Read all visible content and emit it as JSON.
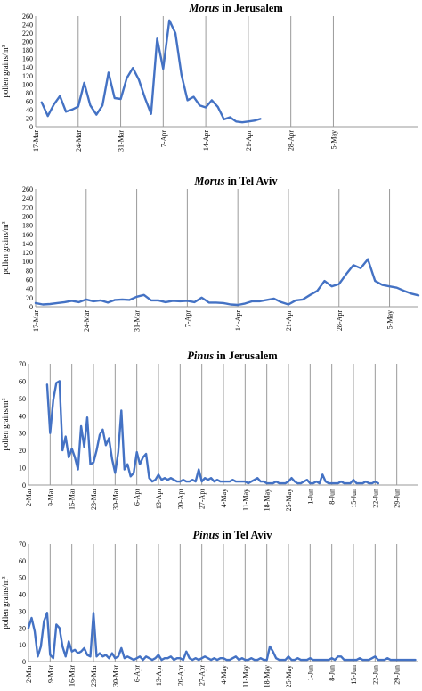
{
  "chart_data": [
    {
      "type": "line",
      "title_taxon": "Morus",
      "title_rest": " in Jerusalem",
      "ylabel": "pollen grains/m",
      "ylabel_sup": "3",
      "ylim": [
        0,
        260
      ],
      "yticks": [
        0,
        20,
        40,
        60,
        80,
        100,
        120,
        140,
        160,
        180,
        200,
        220,
        240,
        260
      ],
      "x_days": 63,
      "xticks": [
        {
          "day": 0,
          "label": "17-Mar"
        },
        {
          "day": 7,
          "label": "24-Mar"
        },
        {
          "day": 14,
          "label": "31-Mar"
        },
        {
          "day": 21,
          "label": "7-Apr"
        },
        {
          "day": 28,
          "label": "14-Apr"
        },
        {
          "day": 35,
          "label": "21-Apr"
        },
        {
          "day": 42,
          "label": "28-Apr"
        },
        {
          "day": 49,
          "label": "5-May"
        }
      ],
      "grid": "vertical",
      "series": [
        {
          "color": "#4472c4",
          "x": [
            1,
            2,
            3,
            4,
            5,
            6,
            7,
            8,
            9,
            10,
            11,
            12,
            13,
            14,
            15,
            16,
            17,
            18,
            19,
            20,
            21,
            22,
            23,
            24,
            25,
            26,
            27,
            28,
            29,
            30,
            31,
            32,
            33,
            34,
            35,
            36,
            37
          ],
          "y": [
            57,
            25,
            52,
            72,
            35,
            40,
            47,
            103,
            50,
            28,
            50,
            127,
            67,
            65,
            114,
            138,
            110,
            67,
            30,
            207,
            136,
            250,
            220,
            122,
            62,
            70,
            50,
            45,
            62,
            46,
            17,
            22,
            12,
            10,
            12,
            14,
            18
          ]
        }
      ]
    },
    {
      "type": "line",
      "title_taxon": "Morus",
      "title_rest": " in Tel Aviv",
      "ylabel": "pollen grains/m",
      "ylabel_sup": "3",
      "ylim": [
        0,
        260
      ],
      "yticks": [
        0,
        20,
        40,
        60,
        80,
        100,
        120,
        140,
        160,
        180,
        200,
        220,
        240,
        260
      ],
      "x_days": 53,
      "xticks": [
        {
          "day": 0,
          "label": "17-Mar"
        },
        {
          "day": 7,
          "label": "24-Mar"
        },
        {
          "day": 14,
          "label": "31-Mar"
        },
        {
          "day": 21,
          "label": "7-Apr"
        },
        {
          "day": 28,
          "label": "14-Apr"
        },
        {
          "day": 35,
          "label": "21-Apr"
        },
        {
          "day": 42,
          "label": "28-Apr"
        },
        {
          "day": 49,
          "label": "5-May"
        }
      ],
      "grid": "vertical",
      "series": [
        {
          "color": "#4472c4",
          "x": [
            0,
            1,
            2,
            3,
            4,
            5,
            6,
            7,
            8,
            9,
            10,
            11,
            12,
            13,
            14,
            15,
            16,
            17,
            18,
            19,
            20,
            21,
            22,
            23,
            24,
            25,
            26,
            27,
            28,
            29,
            30,
            31,
            32,
            33,
            34,
            35,
            36,
            37,
            38,
            39,
            40,
            41,
            42,
            43,
            44,
            45,
            46,
            47,
            48,
            49,
            50,
            51,
            52,
            53
          ],
          "y": [
            8,
            5,
            6,
            8,
            10,
            13,
            10,
            16,
            12,
            14,
            9,
            15,
            16,
            15,
            22,
            26,
            14,
            14,
            10,
            13,
            12,
            13,
            10,
            20,
            9,
            9,
            8,
            5,
            4,
            7,
            12,
            12,
            15,
            18,
            10,
            5,
            14,
            16,
            26,
            35,
            57,
            45,
            50,
            72,
            92,
            85,
            105,
            57,
            48,
            45,
            42,
            35,
            29,
            25
          ]
        }
      ]
    },
    {
      "type": "line",
      "title_taxon": "Pinus",
      "title_rest": " in Jerusalem",
      "ylabel": "pollen grains/m",
      "ylabel_sup": "3",
      "ylim": [
        0,
        70
      ],
      "yticks": [
        0,
        10,
        20,
        30,
        40,
        50,
        60,
        70
      ],
      "x_days": 126,
      "xticks": [
        {
          "day": 0,
          "label": "2-Mar"
        },
        {
          "day": 7,
          "label": "9-Mar"
        },
        {
          "day": 14,
          "label": "16-Mar"
        },
        {
          "day": 21,
          "label": "23-Mar"
        },
        {
          "day": 28,
          "label": "30-Mar"
        },
        {
          "day": 35,
          "label": "6-Apr"
        },
        {
          "day": 42,
          "label": "13-Apr"
        },
        {
          "day": 49,
          "label": "20-Apr"
        },
        {
          "day": 56,
          "label": "27-Apr"
        },
        {
          "day": 63,
          "label": "4-May"
        },
        {
          "day": 70,
          "label": "11-May"
        },
        {
          "day": 77,
          "label": "18-May"
        },
        {
          "day": 84,
          "label": "25-May"
        },
        {
          "day": 91,
          "label": "1-Jun"
        },
        {
          "day": 98,
          "label": "8-Jun"
        },
        {
          "day": 105,
          "label": "15-Jun"
        },
        {
          "day": 112,
          "label": "22-Jun"
        },
        {
          "day": 119,
          "label": "29-Jun"
        }
      ],
      "grid": "vertical",
      "series": [
        {
          "color": "#4472c4",
          "x": [
            6,
            7,
            8,
            9,
            10,
            11,
            12,
            13,
            14,
            15,
            16,
            17,
            18,
            19,
            20,
            21,
            22,
            23,
            24,
            25,
            26,
            27,
            28,
            29,
            30,
            31,
            32,
            33,
            34,
            35,
            36,
            37,
            38,
            39,
            40,
            41,
            42,
            43,
            44,
            45,
            46,
            47,
            48,
            49,
            50,
            51,
            52,
            53,
            54,
            55,
            56,
            57,
            58,
            59,
            60,
            61,
            62,
            63,
            64,
            65,
            66,
            67,
            68,
            69,
            70,
            71,
            72,
            73,
            74,
            75,
            76,
            77,
            78,
            79,
            80,
            81,
            82,
            83,
            84,
            85,
            86,
            87,
            88,
            89,
            90,
            91,
            92,
            93,
            94,
            95,
            96,
            97,
            98,
            99,
            100,
            101,
            102,
            103,
            104,
            105,
            106,
            107,
            108,
            109,
            110,
            111,
            112,
            113
          ],
          "y": [
            58,
            30,
            49,
            59,
            60,
            20,
            28,
            16,
            21,
            16,
            9,
            34,
            22,
            39,
            12,
            13,
            20,
            29,
            32,
            23,
            27,
            15,
            7,
            19,
            43,
            9,
            12,
            5,
            7,
            19,
            12,
            16,
            18,
            4,
            2,
            3,
            6,
            3,
            4,
            3,
            4,
            3,
            2,
            2,
            3,
            2,
            2,
            3,
            2,
            9,
            2,
            4,
            3,
            4,
            2,
            3,
            2,
            2,
            2,
            2,
            3,
            2,
            2,
            2,
            2,
            1,
            2,
            3,
            4,
            2,
            2,
            1,
            1,
            1,
            2,
            1,
            1,
            1,
            2,
            4,
            2,
            1,
            1,
            2,
            3,
            1,
            1,
            2,
            1,
            6,
            2,
            1,
            1,
            1,
            1,
            2,
            1,
            1,
            1,
            3,
            1,
            1,
            1,
            2,
            1,
            1,
            2,
            1
          ]
        }
      ]
    },
    {
      "type": "line",
      "title_taxon": "Pinus",
      "title_rest": " in Tel Aviv",
      "ylabel": "pollen grains/m",
      "ylabel_sup": "3",
      "ylim": [
        0,
        70
      ],
      "yticks": [
        0,
        10,
        20,
        30,
        40,
        50,
        60,
        70
      ],
      "x_days": 126,
      "xticks": [
        {
          "day": 0,
          "label": "2-Mar"
        },
        {
          "day": 7,
          "label": "9-Mar"
        },
        {
          "day": 14,
          "label": "16-Mar"
        },
        {
          "day": 21,
          "label": "23-Mar"
        },
        {
          "day": 28,
          "label": "30-Mar"
        },
        {
          "day": 35,
          "label": "6-Apr"
        },
        {
          "day": 42,
          "label": "13-Apr"
        },
        {
          "day": 49,
          "label": "20-Apr"
        },
        {
          "day": 56,
          "label": "27-Apr"
        },
        {
          "day": 63,
          "label": "4-May"
        },
        {
          "day": 70,
          "label": "11-May"
        },
        {
          "day": 77,
          "label": "18-May"
        },
        {
          "day": 84,
          "label": "25-May"
        },
        {
          "day": 91,
          "label": "1-Jun"
        },
        {
          "day": 98,
          "label": "8-Jun"
        },
        {
          "day": 105,
          "label": "15-Jun"
        },
        {
          "day": 112,
          "label": "22-Jun"
        },
        {
          "day": 119,
          "label": "29-Jun"
        }
      ],
      "grid": "vertical",
      "series": [
        {
          "color": "#4472c4",
          "x": [
            0,
            1,
            2,
            3,
            4,
            5,
            6,
            7,
            8,
            9,
            10,
            11,
            12,
            13,
            14,
            15,
            16,
            17,
            18,
            19,
            20,
            21,
            22,
            23,
            24,
            25,
            26,
            27,
            28,
            29,
            30,
            31,
            32,
            33,
            34,
            35,
            36,
            37,
            38,
            39,
            40,
            41,
            42,
            43,
            44,
            45,
            46,
            47,
            48,
            49,
            50,
            51,
            52,
            53,
            54,
            55,
            56,
            57,
            58,
            59,
            60,
            61,
            62,
            63,
            64,
            65,
            66,
            67,
            68,
            69,
            70,
            71,
            72,
            73,
            74,
            75,
            76,
            77,
            78,
            79,
            80,
            81,
            82,
            83,
            84,
            85,
            86,
            87,
            88,
            89,
            90,
            91,
            92,
            93,
            94,
            95,
            96,
            97,
            98,
            99,
            100,
            101,
            102,
            103,
            104,
            105,
            106,
            107,
            108,
            109,
            110,
            111,
            112,
            113,
            114,
            115,
            116,
            117,
            118,
            119,
            120,
            121,
            122,
            123,
            124,
            125
          ],
          "y": [
            20,
            26,
            18,
            3,
            9,
            24,
            29,
            4,
            2,
            22,
            20,
            9,
            3,
            12,
            6,
            7,
            5,
            6,
            8,
            4,
            3,
            29,
            3,
            5,
            3,
            4,
            2,
            5,
            2,
            3,
            8,
            2,
            3,
            2,
            1,
            2,
            3,
            1,
            3,
            2,
            1,
            2,
            4,
            1,
            2,
            2,
            3,
            1,
            2,
            2,
            1,
            6,
            2,
            1,
            2,
            1,
            2,
            3,
            2,
            1,
            2,
            1,
            2,
            2,
            1,
            1,
            2,
            3,
            1,
            2,
            1,
            1,
            2,
            1,
            1,
            2,
            1,
            1,
            9,
            6,
            2,
            1,
            1,
            1,
            3,
            1,
            1,
            2,
            1,
            1,
            1,
            2,
            1,
            1,
            1,
            1,
            1,
            1,
            2,
            1,
            3,
            3,
            1,
            1,
            1,
            1,
            1,
            2,
            1,
            1,
            1,
            2,
            3,
            1,
            1,
            1,
            2,
            1,
            1,
            1,
            1,
            1,
            1,
            1,
            1,
            1
          ]
        }
      ]
    }
  ]
}
